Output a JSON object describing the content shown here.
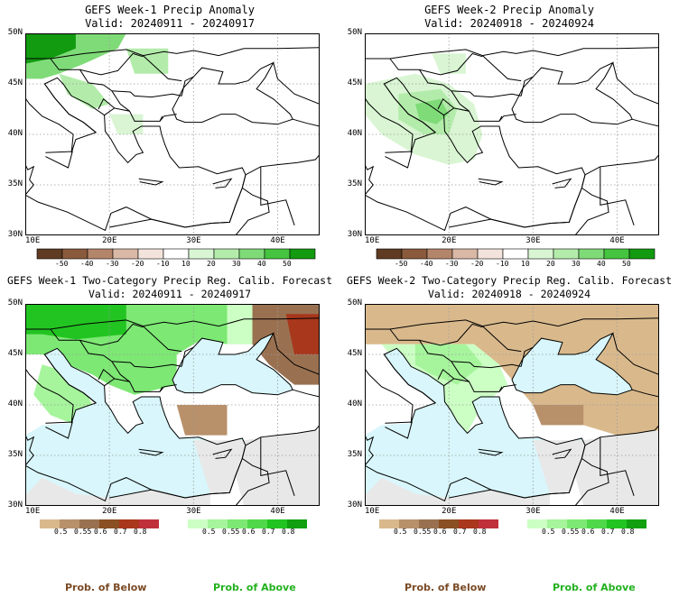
{
  "panels": [
    {
      "title_line1": "GEFS Week-1 Precip Anomaly",
      "title_line2": "Valid: 20240911 - 20240917",
      "colorbar_labels": [
        "-50",
        "-40",
        "-30",
        "-20",
        "-10",
        "10",
        "20",
        "30",
        "40",
        "50"
      ]
    },
    {
      "title_line1": "GEFS Week-2 Precip Anomaly",
      "title_line2": "Valid: 20240918 - 20240924",
      "colorbar_labels": [
        "-50",
        "-40",
        "-30",
        "-20",
        "-10",
        "10",
        "20",
        "30",
        "40",
        "50"
      ]
    },
    {
      "title_line1": "GEFS Week-1 Two-Category Precip Reg. Calib. Forecast",
      "title_line2": "Valid: 20240911 - 20240917",
      "below_labels": [
        "0.5",
        "0.55",
        "0.6",
        "0.7",
        "0.8"
      ],
      "above_labels": [
        "0.5",
        "0.55",
        "0.6",
        "0.7",
        "0.8"
      ]
    },
    {
      "title_line1": "GEFS Week-2 Two-Category Precip Reg. Calib. Forecast",
      "title_line2": "Valid: 20240918 - 20240924",
      "below_labels": [
        "0.5",
        "0.55",
        "0.6",
        "0.7",
        "0.8"
      ],
      "above_labels": [
        "0.5",
        "0.55",
        "0.6",
        "0.7",
        "0.8"
      ]
    }
  ],
  "axes": {
    "lat_labels": [
      "50N",
      "45N",
      "40N",
      "35N",
      "30N"
    ],
    "lon_labels": [
      "10E",
      "20E",
      "30E",
      "40E"
    ],
    "lat_range": [
      30,
      50
    ],
    "lon_range": [
      10,
      45
    ]
  },
  "captions": {
    "prob_below": "Prob. of Below",
    "prob_above": "Prob. of Above"
  },
  "colors": {
    "anomaly_scale": [
      "#5e3b22",
      "#8a5a3c",
      "#b3856a",
      "#d9b8a6",
      "#f3e3dc",
      "#ffffff",
      "#d9f5d3",
      "#b3ecaa",
      "#7fdb78",
      "#45c43f",
      "#129a10"
    ],
    "below_scale": [
      "#d9b98c",
      "#b8906a",
      "#9a7150",
      "#8a4f22",
      "#a8371c",
      "#c0303a"
    ],
    "above_scale": [
      "#ccffc4",
      "#a6f59c",
      "#7de874",
      "#4fd84a",
      "#22c422",
      "#10a010"
    ],
    "water": "#d8f6fb",
    "no_data": "#e8e8e8",
    "prob_below_text": "#7a4a25",
    "prob_above_text": "#22b11e"
  }
}
